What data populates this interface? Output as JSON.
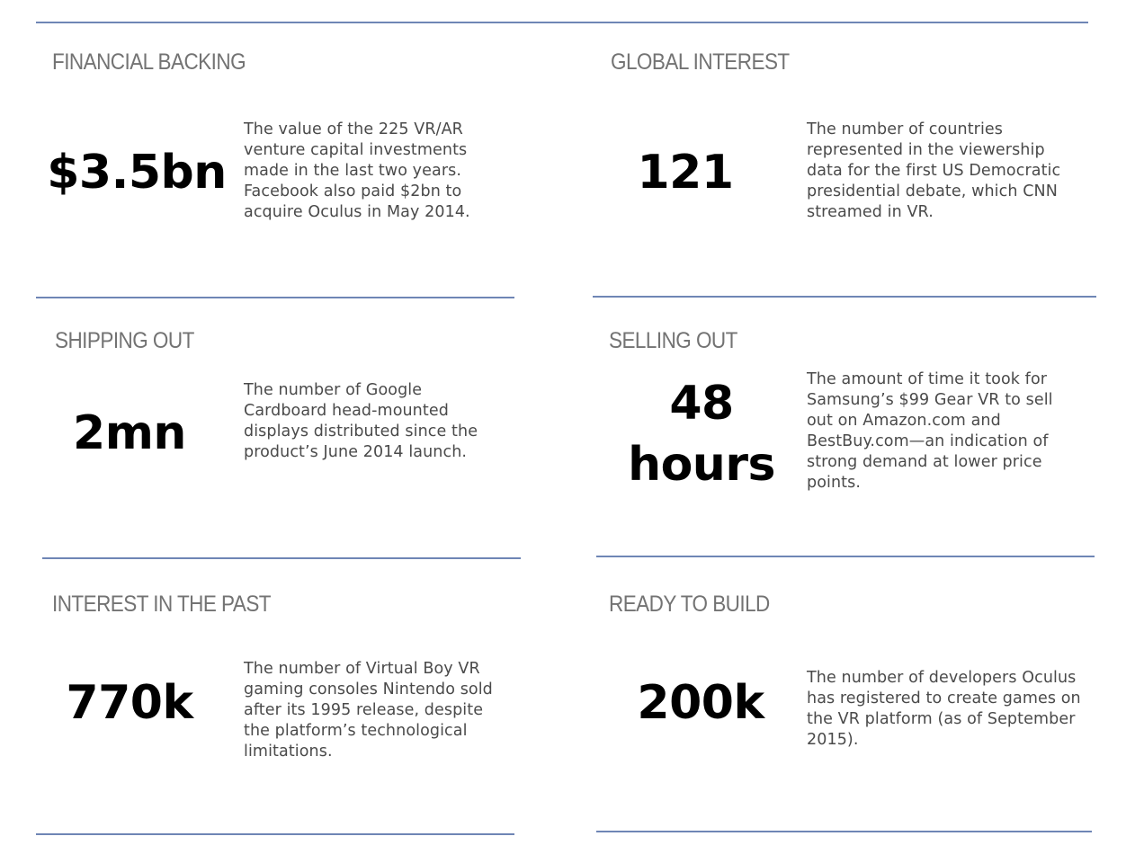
{
  "colors": {
    "rule": "#6f86b5",
    "heading": "#737373",
    "stat": "#000000",
    "description": "#4a4a4a"
  },
  "panels": [
    {
      "heading": "FINANCIAL BACKING",
      "stat": "$3.5bn",
      "description": "The value of the 225 VR/AR venture capital investments made in the last two years. Facebook also paid  $2bn to acquire Oculus in May 2014."
    },
    {
      "heading": "GLOBAL INTEREST",
      "stat": "121",
      "description": "The number of countries represented in the viewership data for the first US Democratic presidential debate, which CNN streamed in VR."
    },
    {
      "heading": "SHIPPING OUT",
      "stat": "2mn",
      "description": "The number of Google Cardboard head-mounted displays distributed since the product’s June 2014 launch."
    },
    {
      "heading": "SELLING OUT",
      "stat": "48 hours",
      "description": "The amount of time it took for Samsung’s $99 Gear VR to sell out on Amazon.com and BestBuy.com—an indication of strong demand at lower price points."
    },
    {
      "heading": "INTEREST IN THE PAST",
      "stat": "770k",
      "description": "The number of Virtual Boy VR gaming consoles Nintendo sold after its 1995 release, despite the platform’s technological limitations."
    },
    {
      "heading": "READY TO BUILD",
      "stat": "200k",
      "description": "The number of developers Oculus has registered to create games on the VR platform (as of September 2015)."
    }
  ]
}
